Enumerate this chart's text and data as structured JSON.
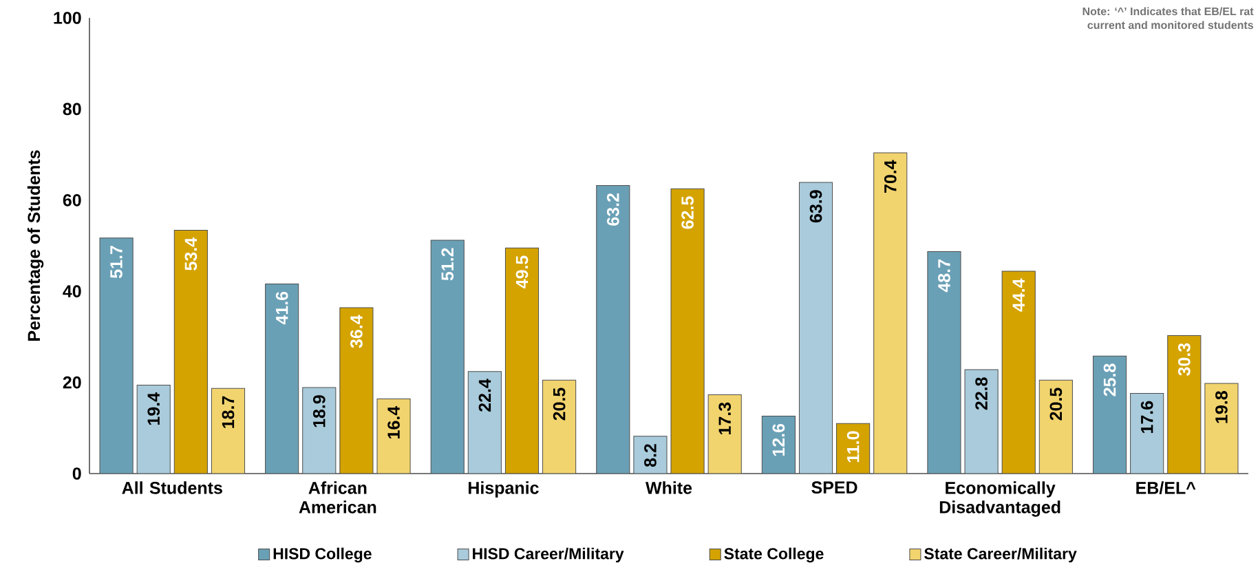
{
  "chart_data": {
    "type": "bar",
    "ylabel": "Percentage of Students",
    "categories": [
      "All Students",
      "African American",
      "Hispanic",
      "White",
      "SPED",
      "Economically Disadvantaged",
      "EB/EL^"
    ],
    "series": [
      {
        "name": "HISD College",
        "color": "#6aa0b6",
        "values": [
          51.7,
          41.6,
          51.2,
          63.2,
          12.6,
          48.7,
          25.8
        ],
        "value_labels": [
          "51.7",
          "41.6",
          "51.2",
          "63.2",
          "12.6",
          "48.7",
          "25.8"
        ]
      },
      {
        "name": "HISD Career/Military",
        "color": "#a9cbdb",
        "values": [
          19.4,
          18.9,
          22.4,
          8.2,
          63.9,
          22.8,
          17.6
        ],
        "value_labels": [
          "19.4",
          "18.9",
          "22.4",
          "8.2",
          "63.9",
          "22.8",
          "17.6"
        ]
      },
      {
        "name": "State College",
        "color": "#d4a300",
        "values": [
          53.4,
          36.4,
          49.5,
          62.5,
          11.0,
          44.4,
          30.3
        ],
        "value_labels": [
          "53.4",
          "36.4",
          "49.5",
          "62.5",
          "11.0",
          "44.4",
          "30.3"
        ]
      },
      {
        "name": "State Career/Military",
        "color": "#f2d46e",
        "values": [
          18.7,
          16.4,
          20.5,
          17.3,
          70.4,
          20.5,
          19.8
        ],
        "value_labels": [
          "18.7",
          "16.4",
          "20.5",
          "17.3",
          "70.4",
          "20.5",
          "19.8"
        ]
      }
    ],
    "ylim": [
      0,
      100
    ],
    "yticks": [
      0,
      20,
      40,
      60,
      80,
      100
    ],
    "legend": "bottom",
    "grid": false,
    "annotations": [
      "Note: ‘^’ Indicates that EB/EL rat",
      "current and monitored students"
    ]
  }
}
